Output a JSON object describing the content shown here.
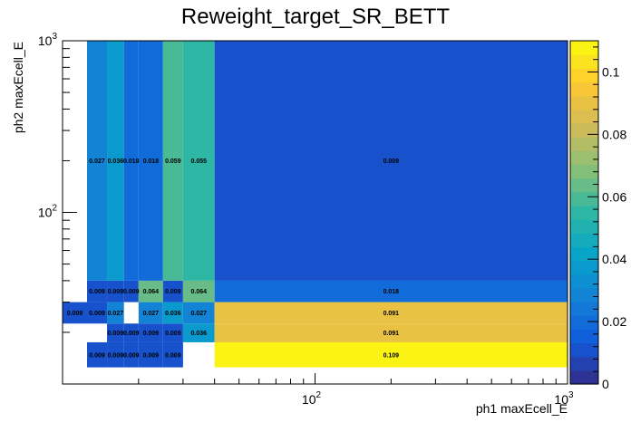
{
  "chart_data": {
    "type": "heatmap",
    "title": "Reweight_target_SR_BETT",
    "xlabel": "ph1 maxEcell_E",
    "ylabel": "ph2 maxEcell_E",
    "x_scale": "log",
    "y_scale": "log",
    "xlim": [
      10,
      1000
    ],
    "ylim": [
      10,
      1000
    ],
    "x_major_ticks": [
      {
        "value": 100,
        "base": "10",
        "exp": "2"
      },
      {
        "value": 1000,
        "base": "10",
        "exp": "3"
      }
    ],
    "y_major_ticks": [
      {
        "value": 100,
        "base": "10",
        "exp": "2"
      },
      {
        "value": 1000,
        "base": "10",
        "exp": "3"
      }
    ],
    "x_bin_edges": [
      10,
      12.5,
      15,
      17.5,
      20,
      25,
      30,
      40,
      1000
    ],
    "y_bin_edges": [
      12.5,
      17.5,
      22.5,
      30,
      40,
      1000
    ],
    "colorbar": {
      "range": [
        0,
        0.11
      ],
      "ticks": [
        "0",
        "0.02",
        "0.04",
        "0.06",
        "0.08",
        "0.1"
      ],
      "tick_values": [
        0,
        0.02,
        0.04,
        0.06,
        0.08,
        0.1
      ]
    },
    "cells": [
      {
        "xi": 1,
        "yi": 0,
        "value": 0.009,
        "label": "0.009"
      },
      {
        "xi": 2,
        "yi": 0,
        "value": 0.009,
        "label": "0.009"
      },
      {
        "xi": 3,
        "yi": 0,
        "value": 0.009,
        "label": "0.009"
      },
      {
        "xi": 4,
        "yi": 0,
        "value": 0.009,
        "label": "0.009"
      },
      {
        "xi": 5,
        "yi": 0,
        "value": 0.009,
        "label": "0.009"
      },
      {
        "xi": 7,
        "yi": 0,
        "value": 0.109,
        "label": "0.109"
      },
      {
        "xi": 2,
        "yi": 1,
        "value": 0.009,
        "label": "0.009"
      },
      {
        "xi": 3,
        "yi": 1,
        "value": 0.009,
        "label": "0.009"
      },
      {
        "xi": 4,
        "yi": 1,
        "value": 0.009,
        "label": "0.009"
      },
      {
        "xi": 5,
        "yi": 1,
        "value": 0.009,
        "label": "0.009"
      },
      {
        "xi": 6,
        "yi": 1,
        "value": 0.036,
        "label": "0.036"
      },
      {
        "xi": 7,
        "yi": 1,
        "value": 0.091,
        "label": "0.091"
      },
      {
        "xi": 0,
        "yi": 2,
        "value": 0.009,
        "label": "0.009"
      },
      {
        "xi": 1,
        "yi": 2,
        "value": 0.009,
        "label": "0.009"
      },
      {
        "xi": 2,
        "yi": 2,
        "value": 0.027,
        "label": "0.027"
      },
      {
        "xi": 4,
        "yi": 2,
        "value": 0.027,
        "label": "0.027"
      },
      {
        "xi": 5,
        "yi": 2,
        "value": 0.036,
        "label": "0.036"
      },
      {
        "xi": 6,
        "yi": 2,
        "value": 0.027,
        "label": "0.027"
      },
      {
        "xi": 7,
        "yi": 2,
        "value": 0.091,
        "label": "0.091"
      },
      {
        "xi": 1,
        "yi": 3,
        "value": 0.009,
        "label": "0.009"
      },
      {
        "xi": 2,
        "yi": 3,
        "value": 0.009,
        "label": "0.009"
      },
      {
        "xi": 3,
        "yi": 3,
        "value": 0.009,
        "label": "0.009"
      },
      {
        "xi": 4,
        "yi": 3,
        "value": 0.064,
        "label": "0.064"
      },
      {
        "xi": 5,
        "yi": 3,
        "value": 0.009,
        "label": "0.009"
      },
      {
        "xi": 6,
        "yi": 3,
        "value": 0.064,
        "label": "0.064"
      },
      {
        "xi": 7,
        "yi": 3,
        "value": 0.018,
        "label": "0.018"
      },
      {
        "xi": 1,
        "yi": 4,
        "value": 0.027,
        "label": "0.027"
      },
      {
        "xi": 2,
        "yi": 4,
        "value": 0.036,
        "label": "0.036"
      },
      {
        "xi": 3,
        "yi": 4,
        "value": 0.018,
        "label": "0.018"
      },
      {
        "xi": 4,
        "yi": 4,
        "value": 0.018,
        "label": "0.018"
      },
      {
        "xi": 5,
        "yi": 4,
        "value": 0.059,
        "label": "0.059"
      },
      {
        "xi": 6,
        "yi": 4,
        "value": 0.055,
        "label": "0.055"
      },
      {
        "xi": 7,
        "yi": 4,
        "value": 0.009,
        "label": "0.009"
      }
    ]
  }
}
